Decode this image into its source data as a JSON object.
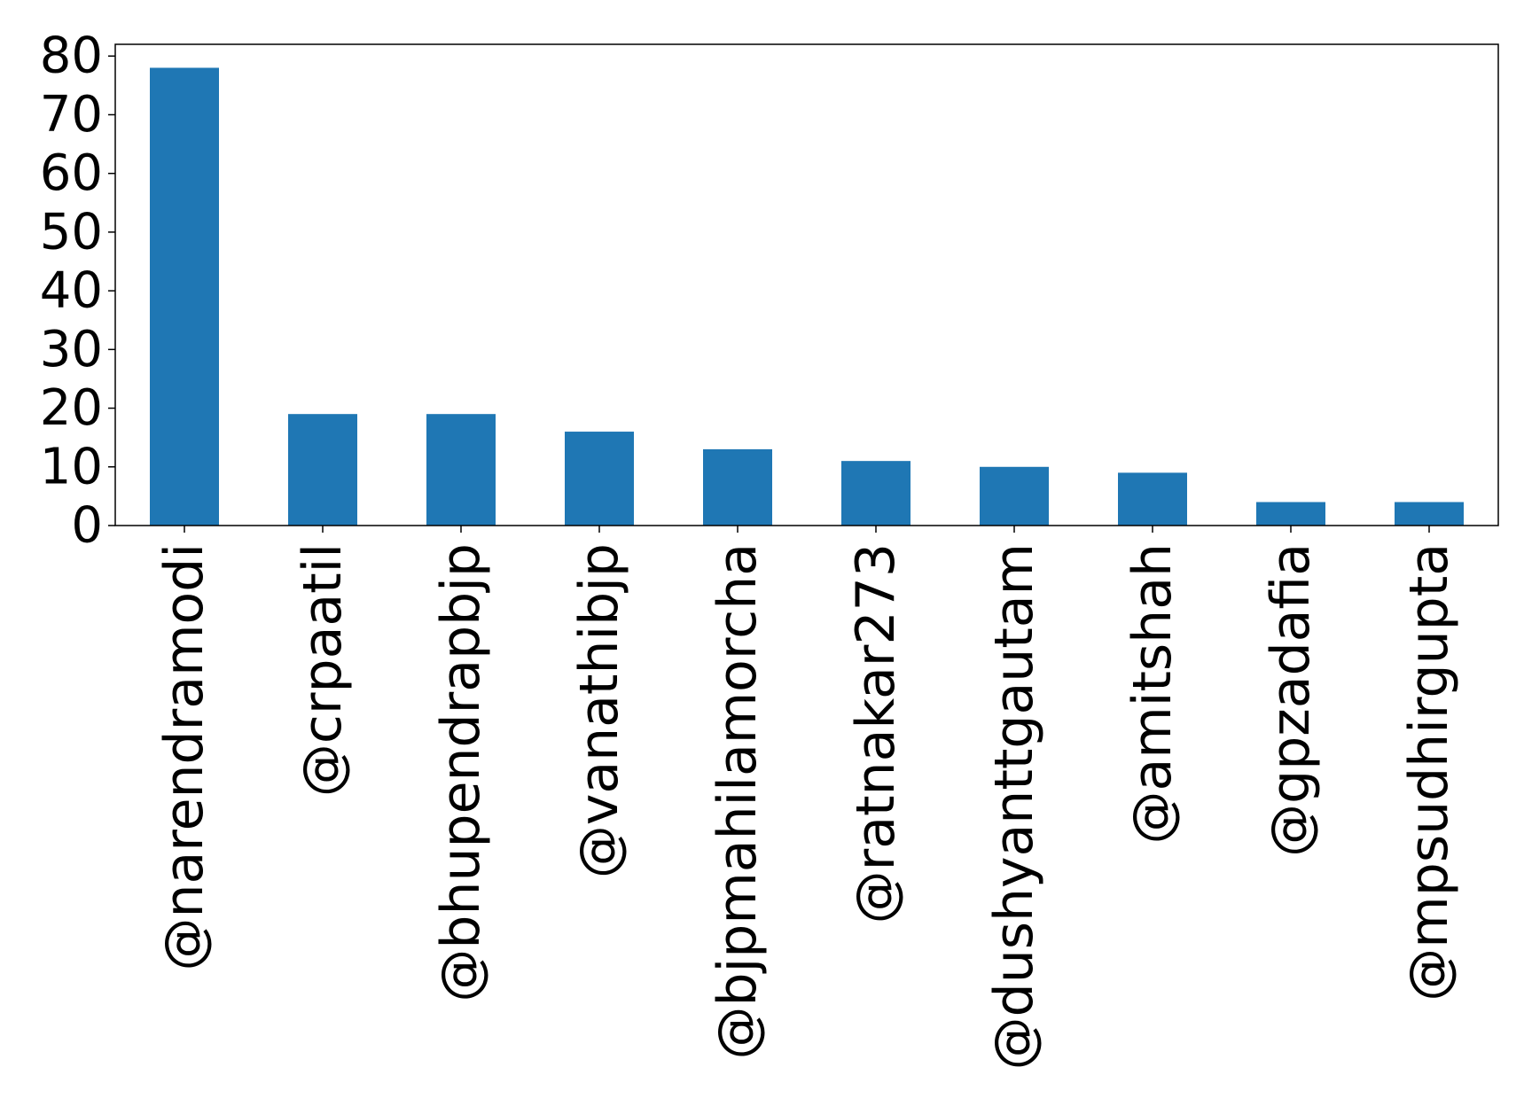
{
  "chart_data": {
    "type": "bar",
    "title": "",
    "xlabel": "",
    "ylabel": "",
    "categories": [
      "@narendramodi",
      "@crpaatil",
      "@bhupendrapbjp",
      "@vanathibjp",
      "@bjpmahilamorcha",
      "@ratnakar273",
      "@dushyanttgautam",
      "@amitshah",
      "@gpzadafia",
      "@mpsudhirgupta"
    ],
    "values": [
      78,
      19,
      19,
      16,
      13,
      11,
      10,
      9,
      4,
      4
    ],
    "ylim": [
      0,
      82
    ],
    "yticks": [
      0,
      10,
      20,
      30,
      40,
      50,
      60,
      70,
      80
    ],
    "grid": false,
    "legend": "none",
    "bar_color": "#1f77b4"
  }
}
